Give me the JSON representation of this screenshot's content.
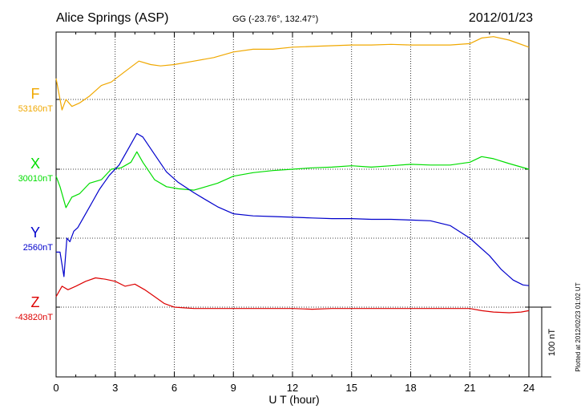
{
  "header": {
    "station": "Alice Springs (ASP)",
    "coords": "GG (-23.76°, 132.47°)",
    "date": "2012/01/23"
  },
  "footer": {
    "plotted": "Plotted at 2012/02/23 01:02 UT"
  },
  "colors": {
    "F": "#f0a800",
    "X": "#00dd00",
    "Y": "#0000cc",
    "Z": "#dd0000",
    "grid": "#000000"
  },
  "chart_data": {
    "type": "line",
    "xlabel": "U T (hour)",
    "xlim": [
      0,
      24
    ],
    "xticks": [
      0,
      3,
      6,
      9,
      12,
      15,
      18,
      21,
      24
    ],
    "tick_labels": [
      "0",
      "3",
      "6",
      "9",
      "12",
      "15",
      "18",
      "21",
      "24"
    ],
    "scale_bar": {
      "label": "100 nT",
      "nT": 100
    },
    "series": [
      {
        "name": "F",
        "baseline_label": "53160nT",
        "baseline_nT": 53160,
        "x": [
          0,
          0.3,
          0.5,
          0.8,
          1.2,
          1.7,
          2.3,
          2.8,
          3.5,
          4.2,
          4.8,
          5.3,
          6.0,
          7.0,
          8.0,
          9.0,
          10.0,
          11.0,
          12.0,
          13.0,
          14.0,
          15.0,
          16.0,
          17.0,
          18.0,
          19.0,
          20.0,
          21.0,
          21.6,
          22.2,
          23.0,
          24.0
        ],
        "y": [
          53190,
          53145,
          53160,
          53150,
          53155,
          53165,
          53180,
          53185,
          53200,
          53215,
          53210,
          53208,
          53210,
          53215,
          53220,
          53228,
          53232,
          53232,
          53235,
          53236,
          53237,
          53238,
          53238,
          53239,
          53238,
          53238,
          53238,
          53240,
          53248,
          53250,
          53245,
          53235
        ]
      },
      {
        "name": "X",
        "baseline_label": "30010nT",
        "baseline_nT": 30010,
        "x": [
          0,
          0.2,
          0.5,
          0.8,
          1.2,
          1.7,
          2.3,
          2.8,
          3.3,
          3.8,
          4.1,
          4.4,
          5.0,
          5.6,
          6.2,
          7.0,
          7.6,
          8.2,
          9.0,
          10.0,
          11.0,
          12.0,
          13.0,
          14.0,
          15.0,
          16.0,
          17.0,
          18.0,
          19.0,
          20.0,
          21.0,
          21.6,
          22.2,
          23.0,
          24.0
        ],
        "y": [
          30000,
          29985,
          29955,
          29970,
          29975,
          29990,
          29995,
          30010,
          30012,
          30020,
          30035,
          30020,
          29995,
          29985,
          29982,
          29980,
          29985,
          29990,
          30000,
          30005,
          30008,
          30010,
          30012,
          30013,
          30015,
          30013,
          30015,
          30017,
          30016,
          30016,
          30020,
          30028,
          30025,
          30018,
          30010
        ]
      },
      {
        "name": "Y",
        "baseline_label": "2560nT",
        "baseline_nT": 2560,
        "x": [
          0,
          0.2,
          0.4,
          0.55,
          0.7,
          0.9,
          1.1,
          1.4,
          1.8,
          2.2,
          2.7,
          3.2,
          3.7,
          4.1,
          4.4,
          5.0,
          5.6,
          6.2,
          7.0,
          7.6,
          8.2,
          9.0,
          10.0,
          11.0,
          12.0,
          13.0,
          14.0,
          15.0,
          16.0,
          17.0,
          18.0,
          19.0,
          20.0,
          21.0,
          22.0,
          22.6,
          23.2,
          23.7,
          24.0
        ],
        "y": [
          2540,
          2540,
          2505,
          2560,
          2555,
          2570,
          2575,
          2590,
          2610,
          2630,
          2650,
          2665,
          2690,
          2710,
          2705,
          2680,
          2655,
          2640,
          2625,
          2615,
          2605,
          2595,
          2592,
          2591,
          2590,
          2589,
          2588,
          2588,
          2587,
          2587,
          2586,
          2585,
          2578,
          2560,
          2535,
          2515,
          2500,
          2493,
          2492
        ]
      },
      {
        "name": "Z",
        "baseline_label": "-43820nT",
        "baseline_nT": -43820,
        "x": [
          0,
          0.3,
          0.6,
          1.0,
          1.5,
          2.0,
          2.5,
          3.0,
          3.5,
          4.0,
          4.5,
          5.0,
          5.5,
          6.0,
          6.5,
          7.0,
          8.0,
          9.0,
          10.0,
          11.0,
          12.0,
          13.0,
          14.0,
          15.0,
          16.0,
          17.0,
          18.0,
          19.0,
          20.0,
          21.0,
          21.6,
          22.2,
          23.0,
          23.6,
          24.0
        ],
        "y": [
          -43805,
          -43790,
          -43795,
          -43790,
          -43783,
          -43778,
          -43780,
          -43783,
          -43790,
          -43787,
          -43795,
          -43805,
          -43815,
          -43820,
          -43821,
          -43822,
          -43822,
          -43822,
          -43822,
          -43822,
          -43822,
          -43823,
          -43822,
          -43822,
          -43822,
          -43822,
          -43822,
          -43822,
          -43822,
          -43822,
          -43825,
          -43827,
          -43828,
          -43827,
          -43825
        ]
      }
    ]
  }
}
